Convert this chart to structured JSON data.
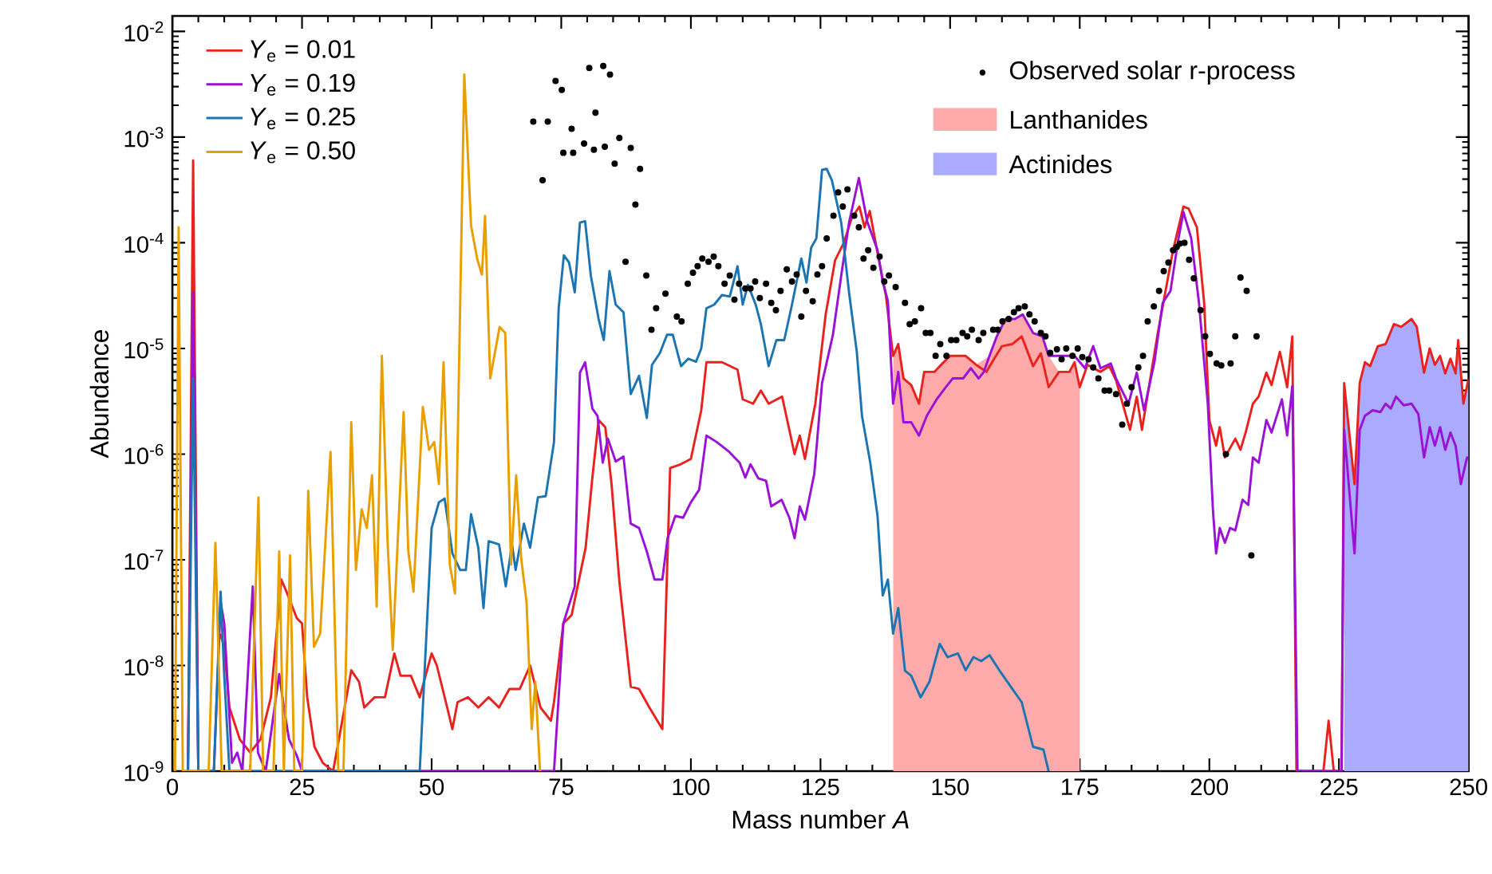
{
  "chart_data": {
    "type": "line",
    "xlabel": "Mass number *A*",
    "ylabel": "Abundance",
    "xlim": [
      0,
      250
    ],
    "ylim": [
      1e-09,
      0.014
    ],
    "log": "y",
    "legend": "top left",
    "xticks": [
      0,
      25,
      50,
      75,
      100,
      125,
      150,
      175,
      200,
      225,
      250
    ],
    "yticks": [
      {
        "value": 1e-09,
        "label": "10$^{-9}$"
      },
      {
        "value": 1e-08,
        "label": "10$^{-8}$"
      },
      {
        "value": 1e-07,
        "label": "10$^{-7}$"
      },
      {
        "value": 1e-06,
        "label": "10$^{-6}$"
      },
      {
        "value": 1e-05,
        "label": "10$^{-5}$"
      },
      {
        "value": 0.0001,
        "label": "10$^{-4}$"
      },
      {
        "value": 0.001,
        "label": "10$^{-3}$"
      },
      {
        "value": 0.01,
        "label": "10$^{-2}$"
      }
    ],
    "series": [
      {
        "name": "*Y*$_{e}$ = 0.01",
        "color": "#e8231f",
        "x": [
          3,
          4,
          5,
          8,
          9.2,
          10,
          11,
          13,
          15,
          17,
          19,
          21,
          22,
          24,
          25,
          26,
          27.4,
          29,
          31,
          33,
          34.5,
          36,
          37,
          39,
          41,
          42.8,
          44,
          46,
          47.7,
          50,
          51,
          53,
          54,
          55,
          57,
          59,
          61,
          63,
          65,
          67,
          69,
          71,
          73,
          73.6,
          75.4,
          77,
          79.7,
          81,
          82.2,
          83.5,
          84.7,
          86.2,
          88.4,
          90,
          92,
          94.5,
          96,
          98,
          100,
          102,
          103,
          106,
          109,
          110,
          112,
          113.5,
          115,
          117.6,
          120,
          121,
          122,
          124,
          126,
          127.8,
          129.5,
          131,
          132.5,
          133.5,
          134.5,
          136,
          137.6,
          139,
          140,
          141,
          142.5,
          144,
          145,
          147,
          148,
          150,
          153,
          155,
          157,
          158.5,
          160,
          162,
          163.8,
          166,
          167.5,
          169,
          171,
          173,
          174,
          175,
          176.5,
          179,
          180.7,
          182,
          184.7,
          186,
          187,
          189,
          190,
          191.5,
          193,
          195,
          196,
          197.6,
          199,
          200,
          201.3,
          202,
          203,
          205,
          206,
          207,
          208.4,
          209.5,
          211,
          212,
          213.6,
          215,
          216,
          216.8,
          222,
          223,
          224,
          225.5,
          226,
          228,
          229,
          230,
          231,
          232.5,
          234,
          235.6,
          237,
          239,
          240,
          241.4,
          242.5,
          243.5,
          244.5,
          245.5,
          246.5,
          247.5,
          248,
          249,
          250
        ],
        "values": [
          1e-09,
          0.0006,
          1e-09,
          null,
          2e-08,
          1.5e-08,
          4e-09,
          2e-09,
          1.5e-09,
          2e-09,
          5e-09,
          6.5e-08,
          5e-08,
          2.8e-08,
          2.5e-08,
          5e-09,
          1.7e-09,
          1.2e-09,
          1e-09,
          3.5e-09,
          9e-09,
          7e-09,
          4e-09,
          5e-09,
          5e-09,
          1.3e-08,
          8e-09,
          8e-09,
          5e-09,
          1.3e-08,
          1e-08,
          4e-09,
          2.5e-09,
          4.5e-09,
          5e-09,
          4e-09,
          5e-09,
          4e-09,
          6e-09,
          6e-09,
          1e-08,
          4e-09,
          3e-09,
          4.5e-09,
          2.5e-08,
          3e-08,
          1.3e-07,
          6e-07,
          2.1e-06,
          1.8e-06,
          5.2e-07,
          6.3e-08,
          6.3e-09,
          6e-09,
          4e-09,
          2.5e-09,
          7.4e-07,
          8e-07,
          9e-07,
          2.6e-06,
          7.4e-06,
          7.4e-06,
          6.3e-06,
          3.3e-06,
          3e-06,
          4e-06,
          3e-06,
          3.5e-06,
          1e-06,
          1.5e-06,
          9e-07,
          3e-06,
          2.1e-05,
          6.8e-05,
          0.0001,
          0.00017,
          0.00022,
          0.00014,
          0.0002,
          8e-05,
          3.2e-05,
          8.5e-06,
          1.1e-05,
          5.2e-06,
          4.5e-06,
          3e-06,
          6e-06,
          6e-06,
          6.8e-06,
          8.5e-06,
          8.5e-06,
          7e-06,
          6e-06,
          8e-06,
          1.05e-05,
          1.1e-05,
          1.3e-05,
          6.8e-06,
          9e-06,
          4.3e-06,
          6e-06,
          6e-06,
          7.4e-06,
          4.3e-06,
          7e-06,
          6e-06,
          6.8e-06,
          5e-06,
          1.7e-06,
          3.5e-06,
          1.7e-06,
          6.8e-06,
          1.35e-05,
          3.4e-05,
          8.5e-05,
          0.00022,
          0.00021,
          0.00014,
          2.7e-05,
          2.1e-06,
          1.2e-06,
          1.8e-06,
          9.3e-07,
          1.4e-06,
          1.1e-06,
          1.6e-06,
          3e-06,
          3.5e-06,
          5.9e-06,
          4.5e-06,
          9.3e-06,
          4.3e-06,
          1.3e-05,
          1e-09,
          1e-09,
          3e-09,
          1e-09,
          1e-09,
          4.7e-06,
          5.2e-07,
          4.7e-06,
          7.4e-06,
          6.8e-06,
          1.05e-05,
          1.1e-05,
          1.7e-05,
          1.6e-05,
          1.9e-05,
          1.6e-05,
          5.9e-06,
          1e-05,
          7e-06,
          8.5e-06,
          5.8e-06,
          8e-06,
          5.8e-06,
          1.2e-05,
          3e-06,
          5.2e-06
        ]
      },
      {
        "name": "*Y*$_{e}$ = 0.19",
        "color": "#9b11d6",
        "x": [
          3,
          4,
          5,
          8,
          9.3,
          10,
          11.5,
          12.5,
          13.5,
          15.5,
          16.5,
          18,
          20.6,
          21.5,
          22.5,
          24,
          25,
          73.6,
          75.4,
          77.6,
          78.6,
          79.6,
          81,
          82,
          83,
          84,
          85.5,
          87,
          88.4,
          90,
          91.5,
          93,
          94.5,
          95.5,
          97,
          98.5,
          100,
          101.6,
          103,
          105,
          107.4,
          109.4,
          110.5,
          111.5,
          113,
          114.5,
          115.5,
          117.5,
          119,
          120,
          121,
          122,
          123.8,
          125.3,
          127.4,
          129,
          130.5,
          132.4,
          134,
          136,
          137,
          138,
          139,
          140,
          141,
          142.5,
          144,
          145.5,
          147.4,
          149,
          150.5,
          152.5,
          154,
          155.5,
          156.5,
          157.6,
          159,
          160.7,
          162.5,
          164,
          166,
          167.8,
          169,
          171,
          174,
          176,
          177.6,
          179,
          181,
          182,
          184.4,
          186,
          187.4,
          189.4,
          191,
          192.5,
          194,
          195,
          196.5,
          198,
          199.7,
          200.7,
          201.3,
          202,
          203,
          204,
          205,
          206.4,
          207.5,
          208.4,
          209.5,
          211,
          212,
          214,
          215,
          216,
          217,
          225.5,
          226,
          228,
          229,
          230,
          231.5,
          233,
          234,
          235,
          236,
          237.5,
          239,
          240.3,
          241.4,
          242.5,
          243.5,
          244.5,
          245.5,
          246.5,
          247.5,
          248.5,
          249.7,
          250
        ],
        "values": [
          1e-09,
          3.4e-05,
          1e-09,
          1e-09,
          4e-08,
          2.5e-08,
          1.2e-09,
          1.5e-09,
          1e-09,
          5.6e-08,
          1.5e-09,
          1e-09,
          8.3e-09,
          4e-09,
          2e-09,
          1.4e-09,
          1e-09,
          1e-09,
          2.5e-08,
          5.6e-08,
          5.9e-06,
          7.4e-06,
          2.7e-06,
          2.3e-06,
          8.3e-07,
          1.4e-06,
          8.5e-07,
          9.5e-07,
          2.2e-07,
          2e-07,
          1.2e-07,
          6.5e-08,
          6.5e-08,
          1.6e-07,
          2.6e-07,
          2.5e-07,
          3.5e-07,
          4.6e-07,
          1.5e-06,
          1.3e-06,
          1.05e-06,
          8.3e-07,
          6e-07,
          8e-07,
          5.9e-07,
          5.6e-07,
          3.2e-07,
          3.7e-07,
          2.5e-07,
          1.6e-07,
          3.2e-07,
          2.4e-07,
          6.5e-07,
          4.7e-06,
          1.35e-05,
          4.9e-05,
          0.000155,
          0.00041,
          0.00016,
          8.5e-05,
          4.3e-05,
          2.8e-05,
          3e-06,
          6e-06,
          2e-06,
          2e-06,
          1.5e-06,
          2.3e-06,
          3.3e-06,
          4.2e-06,
          5.2e-06,
          5.2e-06,
          6.5e-06,
          5.2e-06,
          6e-06,
          8.5e-06,
          1.3e-05,
          1.9e-05,
          1.9e-05,
          2.1e-05,
          1.4e-05,
          1.3e-05,
          8.5e-06,
          8.5e-06,
          8.5e-06,
          6.5e-06,
          1.05e-05,
          6.5e-06,
          7.2e-06,
          5.2e-06,
          3e-06,
          5.9e-06,
          2.6e-06,
          7.4e-06,
          2.7e-05,
          3.5e-05,
          0.000107,
          0.000195,
          0.00011,
          2.7e-05,
          3e-06,
          2.9e-07,
          1.15e-07,
          2e-07,
          1.45e-07,
          2e-07,
          1.9e-07,
          3.7e-07,
          3.3e-07,
          9.3e-07,
          8.3e-07,
          2.1e-06,
          1.6e-06,
          3.3e-06,
          1.5e-06,
          4.4e-06,
          1e-09,
          1e-09,
          1.7e-06,
          1.15e-07,
          1.7e-06,
          2.3e-06,
          2.6e-06,
          2.5e-06,
          3e-06,
          2.7e-06,
          3.5e-06,
          2.9e-06,
          3e-06,
          2.4e-06,
          9.3e-07,
          1.8e-06,
          1.2e-06,
          1.8e-06,
          1.1e-06,
          1.6e-06,
          1.2e-06,
          5.2e-07,
          9.3e-07,
          9e-07
        ]
      },
      {
        "name": "*Y*$_{e}$ = 0.25",
        "color": "#1b75b3",
        "x": [
          3,
          4,
          5,
          8,
          9.3,
          10,
          11,
          47.7,
          50,
          51.4,
          52.5,
          54,
          55.5,
          56.6,
          57.6,
          59,
          60,
          61,
          63,
          64.3,
          65.5,
          66.2,
          67.8,
          69,
          70.5,
          72,
          73.6,
          74.5,
          75.5,
          76.5,
          77.6,
          78.6,
          79.6,
          80.7,
          82.2,
          83.2,
          84.3,
          85.5,
          87,
          88.4,
          90,
          91.5,
          92.5,
          94,
          95.4,
          96.5,
          98.1,
          99.5,
          101,
          102,
          103,
          104.5,
          106,
          107.5,
          109,
          110,
          111,
          112.5,
          113.5,
          115,
          116.5,
          118,
          119.5,
          121.3,
          122.3,
          123.2,
          124.2,
          125.3,
          126.2,
          127.2,
          129,
          130.5,
          132,
          133,
          134.6,
          136,
          137,
          138,
          139,
          140,
          141.3,
          142.5,
          144.3,
          146,
          148,
          149.5,
          151.5,
          153,
          154.5,
          156,
          157.6,
          159.5,
          161.7,
          163.8,
          166,
          168,
          169
        ],
        "values": [
          1e-09,
          5.2e-06,
          1e-09,
          1e-09,
          5e-08,
          8e-09,
          1e-09,
          1e-09,
          2e-07,
          3.5e-07,
          3.8e-07,
          1.15e-07,
          8e-08,
          8e-08,
          2.7e-07,
          1.3e-07,
          3.5e-08,
          1.5e-07,
          1.4e-07,
          5.6e-08,
          1.4e-07,
          8e-08,
          2.2e-07,
          1.3e-07,
          3.9e-07,
          4e-07,
          1.3e-06,
          2.4e-05,
          7.6e-05,
          6.5e-05,
          3.4e-05,
          0.000155,
          0.00016,
          4.9e-05,
          1.9e-05,
          1.2e-05,
          5.4e-05,
          2.6e-05,
          2.2e-05,
          3.7e-06,
          5.5e-06,
          2.2e-06,
          7e-06,
          9e-06,
          1.35e-05,
          1.35e-05,
          6.8e-06,
          8e-06,
          7.5e-06,
          1e-05,
          2.4e-05,
          2.6e-05,
          3.2e-05,
          3.1e-05,
          6e-05,
          2.6e-05,
          4e-05,
          2.6e-05,
          1.7e-05,
          6.8e-06,
          1.2e-05,
          1.2e-05,
          2.6e-05,
          7.1e-05,
          4.2e-05,
          9e-05,
          0.00011,
          0.00049,
          0.0005,
          0.00039,
          0.000155,
          3.4e-05,
          9.3e-06,
          2.3e-06,
          8.3e-07,
          2.6e-07,
          4.6e-08,
          6.5e-08,
          2e-08,
          3.5e-08,
          8.9e-09,
          8e-09,
          5e-09,
          7e-09,
          1.6e-08,
          1.2e-08,
          1.3e-08,
          9e-09,
          1.2e-08,
          1.1e-08,
          1.25e-08,
          9e-09,
          6.3e-09,
          4.5e-09,
          1.7e-09,
          1.6e-09,
          1e-09
        ]
      },
      {
        "name": "*Y*$_{e}$ = 0.50",
        "color": "#e8a000",
        "x": [
          0.5,
          1.2,
          2,
          7,
          8.3,
          9.5,
          15,
          16.6,
          17.5,
          19.5,
          20.6,
          21.5,
          22.7,
          23.5,
          25,
          26.2,
          27.3,
          28.5,
          30.5,
          32,
          33,
          34.5,
          35.4,
          36.5,
          37.5,
          38.5,
          39.4,
          40.4,
          41.5,
          42.5,
          44.6,
          45.5,
          46.5,
          48.3,
          49.5,
          50.5,
          51.4,
          52.3,
          53.5,
          54.5,
          56.3,
          57.6,
          58.8,
          59.7,
          60.3,
          61.3,
          63.1,
          64.2,
          65.3,
          66.3,
          67.3,
          68.3,
          69.3,
          70,
          70.9
        ],
        "values": [
          1e-09,
          0.00014,
          1e-09,
          1e-09,
          1.45e-07,
          1e-09,
          1e-09,
          3.9e-07,
          1e-09,
          1e-09,
          1.2e-07,
          1e-09,
          1.1e-07,
          1e-09,
          1e-09,
          4.5e-07,
          1.5e-08,
          2e-08,
          1.05e-06,
          1e-09,
          1e-09,
          2e-06,
          8e-08,
          3e-07,
          2e-07,
          6.3e-07,
          3.6e-08,
          8.5e-06,
          1.5e-07,
          1.4e-08,
          2.5e-06,
          1.2e-07,
          5e-08,
          2.8e-06,
          1.1e-06,
          1.3e-06,
          5.2e-07,
          7.4e-06,
          9e-08,
          4.8e-08,
          0.0039,
          0.000145,
          7e-05,
          5e-05,
          0.00018,
          5.2e-06,
          1.6e-05,
          1.4e-05,
          9e-08,
          6.3e-07,
          1e-07,
          4e-08,
          2.5e-09,
          7e-09,
          1e-09
        ]
      },
      {
        "name": "Observed solar r-process",
        "type": "scatter",
        "color": "#000000",
        "x": [
          69.6,
          71.4,
          72.4,
          73.9,
          75.1,
          75.4,
          77.0,
          77.3,
          79.4,
          80.4,
          81.3,
          81.6,
          83.1,
          83.4,
          84.4,
          85.3,
          86.2,
          87.4,
          88.4,
          89.3,
          90.2,
          91.4,
          92.4,
          93.3,
          95.1,
          97.3,
          98.2,
          99.4,
          100.4,
          101.3,
          102.2,
          103.4,
          104.4,
          105.3,
          106.5,
          107.5,
          108.4,
          109.3,
          110.5,
          111.5,
          112.4,
          113.3,
          114.5,
          115.5,
          116.4,
          117.3,
          118.5,
          119.5,
          120.4,
          121.3,
          122.2,
          123.5,
          124.4,
          125.3,
          126.2,
          127.5,
          128.4,
          129.3,
          130.2,
          131.5,
          132.4,
          133.3,
          134.2,
          135.2,
          136.4,
          137.3,
          138.2,
          139.5,
          141.3,
          142.2,
          143.2,
          144.4,
          145.3,
          146.2,
          147.2,
          148.1,
          149.3,
          150.2,
          151.2,
          152.4,
          153.3,
          154.2,
          155.5,
          156.4,
          158.3,
          159.2,
          160.1,
          161.3,
          162.3,
          163.2,
          164.4,
          165.3,
          166.3,
          167.5,
          168.4,
          169.3,
          170.6,
          171.5,
          172.4,
          173.6,
          174.6,
          175.5,
          176.7,
          177.6,
          178.6,
          179.8,
          180.7,
          182.0,
          183.2,
          184.1,
          185.0,
          186.3,
          187.2,
          188.1,
          189.3,
          190.3,
          191.2,
          192.1,
          193.0,
          193.7,
          194.3,
          195.2,
          196.1,
          197.0,
          198.3,
          199.2,
          200.1,
          201.4,
          202.3,
          203.2,
          204.1,
          205.0,
          206.0,
          207.2,
          208.1,
          209.1
        ],
        "values": [
          0.0014,
          0.00039,
          0.0014,
          0.0034,
          0.0028,
          0.00071,
          0.0012,
          0.00071,
          0.00087,
          0.0045,
          0.00076,
          0.0017,
          0.0047,
          0.00081,
          0.0039,
          0.00056,
          0.00098,
          6.6e-05,
          0.00079,
          0.00023,
          0.0005,
          4.9e-05,
          1.5e-05,
          2.4e-05,
          3.3e-05,
          2e-05,
          1.8e-05,
          4.1e-05,
          5.2e-05,
          6e-05,
          7.1e-05,
          6.6e-05,
          7.4e-05,
          6e-05,
          4.1e-05,
          4.9e-05,
          2.9e-05,
          4.1e-05,
          3.7e-05,
          3.7e-05,
          4.3e-05,
          3e-05,
          4.1e-05,
          2.7e-05,
          2.3e-05,
          3.5e-05,
          5.6e-05,
          4.3e-05,
          5e-05,
          2e-05,
          3.5e-05,
          2.8e-05,
          5e-05,
          6e-05,
          0.00011,
          0.00018,
          0.0003,
          0.00022,
          0.00032,
          0.00018,
          0.00014,
          7.1e-05,
          8.5e-05,
          5.8e-05,
          7.4e-05,
          4.3e-05,
          4.9e-05,
          3.8e-05,
          2.7e-05,
          1.7e-05,
          1.8e-05,
          2.4e-05,
          1.4e-05,
          1.4e-05,
          8.5e-06,
          1.1e-05,
          8.5e-06,
          1.2e-05,
          1.2e-05,
          1.4e-05,
          1.3e-05,
          1.5e-05,
          1.2e-05,
          1.4e-05,
          1.5e-05,
          1.5e-05,
          1.8e-05,
          1.9e-05,
          2.2e-05,
          2.4e-05,
          2.5e-05,
          2.1e-05,
          1.8e-05,
          1.4e-05,
          1.3e-05,
          9.1e-06,
          9.8e-06,
          7.9e-06,
          1e-05,
          8.5e-06,
          1e-05,
          8.3e-06,
          7.9e-06,
          6.6e-06,
          5.2e-06,
          4e-06,
          4e-06,
          3.7e-06,
          1.9e-06,
          3e-06,
          4.3e-06,
          6.6e-06,
          8.5e-06,
          1.8e-05,
          2.5e-05,
          3.5e-05,
          5.4e-05,
          6.5e-05,
          8.5e-05,
          9.1e-05,
          9.8e-05,
          0.0001,
          6.9e-05,
          4.6e-05,
          2.3e-05,
          1.3e-05,
          8.9e-06,
          7.2e-06,
          6.9e-06,
          1e-06,
          7.2e-06,
          1.3e-05,
          4.7e-05,
          3.5e-05,
          1.1e-07,
          1.3e-05
        ]
      },
      {
        "name": "Lanthanides",
        "type": "area",
        "color": "#ffaaaa",
        "x": [
          139,
          140,
          141,
          142.5,
          144,
          145,
          147,
          148,
          150,
          153,
          155,
          157.6,
          159,
          160.7,
          162.5,
          164,
          166,
          167.8,
          169,
          171,
          173,
          174,
          175
        ],
        "values": [
          8.5e-06,
          1.1e-05,
          5.2e-06,
          4.5e-06,
          3e-06,
          6e-06,
          6e-06,
          6.8e-06,
          8.5e-06,
          8.5e-06,
          7e-06,
          8.5e-06,
          1.3e-05,
          1.9e-05,
          1.9e-05,
          2.1e-05,
          1.4e-05,
          1.3e-05,
          8.5e-06,
          6e-06,
          6e-06,
          7.4e-06,
          4.3e-06
        ]
      },
      {
        "name": "Actinides",
        "type": "area",
        "color": "#aaaaff",
        "x": [
          226,
          228,
          229,
          230,
          231,
          232.5,
          234,
          235.6,
          237,
          239,
          240,
          241.4,
          242.5,
          243.5,
          244.5,
          245.5,
          246.5,
          247.5,
          248,
          249,
          250
        ],
        "values": [
          4.7e-06,
          5.2e-07,
          4.7e-06,
          7.4e-06,
          6.8e-06,
          1.05e-05,
          1.1e-05,
          1.7e-05,
          1.6e-05,
          1.9e-05,
          1.6e-05,
          5.9e-06,
          1e-05,
          7e-06,
          8.5e-06,
          5.8e-06,
          8e-06,
          5.8e-06,
          1.2e-05,
          3e-06,
          5.2e-06
        ]
      }
    ]
  }
}
